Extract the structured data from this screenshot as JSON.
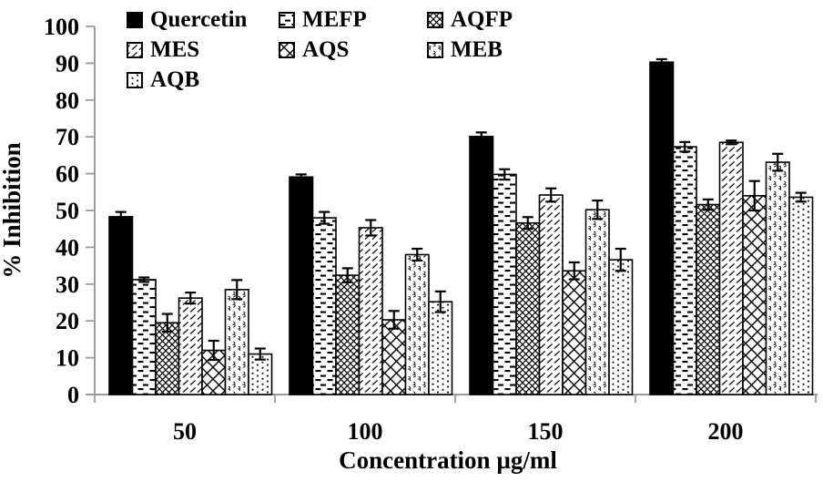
{
  "chart_data": {
    "type": "bar",
    "xlabel": "Concentration µg/ml",
    "ylabel": "% Inhibition",
    "categories": [
      "50",
      "100",
      "150",
      "200"
    ],
    "ylim": [
      0,
      100
    ],
    "ytick_step": 10,
    "yticks": [
      0,
      10,
      20,
      30,
      40,
      50,
      60,
      70,
      80,
      90,
      100
    ],
    "grid": false,
    "legend_position": "top-left-inside",
    "legend_columns": 3,
    "error_bars": true,
    "series": [
      {
        "name": "Quercetin",
        "pattern": "solid-black",
        "values": [
          48.3,
          59.1,
          70.1,
          90.3
        ],
        "errors": [
          1.3,
          0.7,
          1.1,
          0.8
        ]
      },
      {
        "name": "MEFP",
        "pattern": "horizontal-dashes",
        "values": [
          31.2,
          48.0,
          59.8,
          67.3
        ],
        "errors": [
          0.6,
          1.6,
          1.4,
          1.3
        ]
      },
      {
        "name": "AQFP",
        "pattern": "dense-crosshatch",
        "values": [
          19.5,
          32.4,
          46.6,
          51.6
        ],
        "errors": [
          2.4,
          1.9,
          1.6,
          1.4
        ]
      },
      {
        "name": "MES",
        "pattern": "diagonal-dashes",
        "values": [
          26.2,
          45.3,
          54.2,
          68.5
        ],
        "errors": [
          1.5,
          2.1,
          1.8,
          0.5
        ]
      },
      {
        "name": "AQS",
        "pattern": "wide-crosshatch",
        "values": [
          12.0,
          20.3,
          33.6,
          54.0
        ],
        "errors": [
          2.6,
          2.4,
          2.3,
          4.0
        ]
      },
      {
        "name": "MEB",
        "pattern": "scatter-curls",
        "values": [
          28.5,
          38.0,
          50.2,
          63.1
        ],
        "errors": [
          2.6,
          1.6,
          2.5,
          2.3
        ]
      },
      {
        "name": "AQB",
        "pattern": "dotted-columns",
        "values": [
          11.0,
          25.2,
          36.6,
          53.6
        ],
        "errors": [
          1.5,
          2.8,
          3.0,
          1.2
        ]
      }
    ],
    "colors": {
      "bar_fill": "#000000",
      "bar_outline": "#000000",
      "axis_line": "#9b9b9b",
      "text": "#000000",
      "background": "#ffffff"
    }
  }
}
